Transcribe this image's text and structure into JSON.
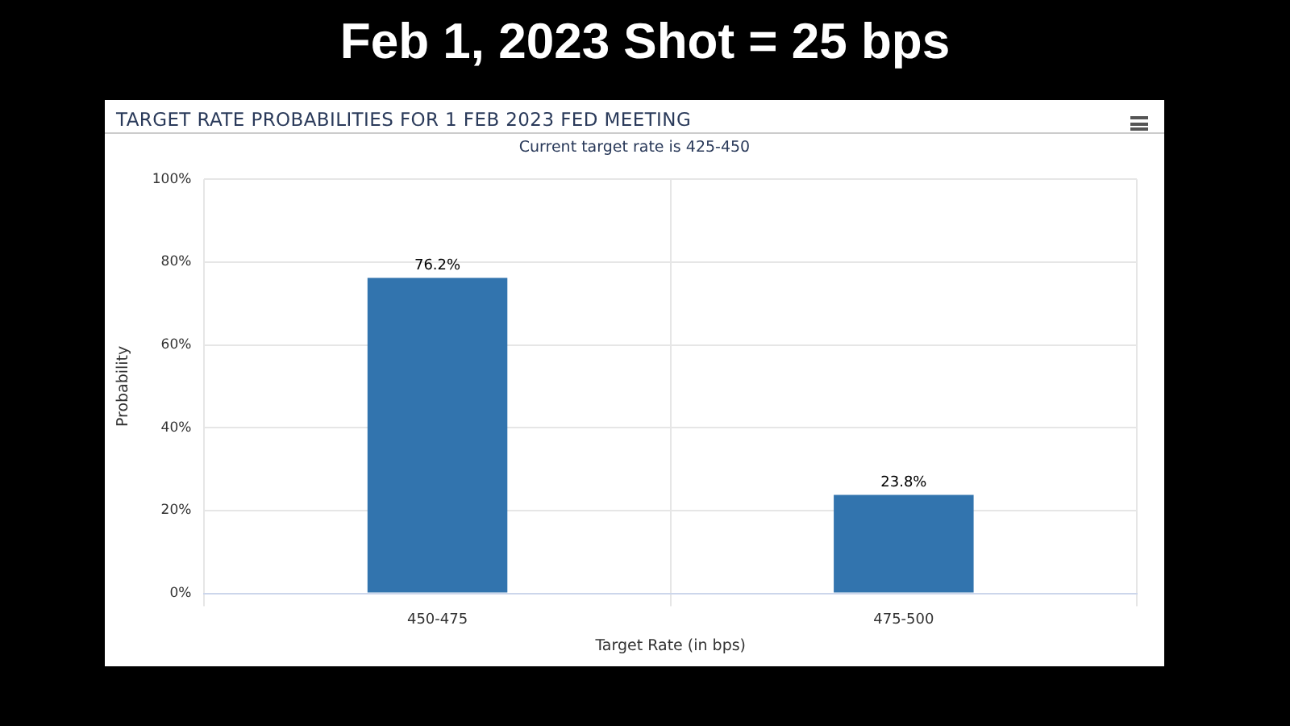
{
  "chart_data": {
    "type": "bar",
    "title": "Feb 1, 2023 Shot = 25 bps",
    "subtitle": "TARGET RATE PROBABILITIES FOR 1 FEB 2023 FED MEETING",
    "annotations": [
      "Current target rate is 425-450"
    ],
    "xlabel": "Target Rate (in bps)",
    "ylabel": "Probability",
    "categories": [
      "450-475",
      "475-500"
    ],
    "values": [
      76.2,
      23.8
    ],
    "color": "#3274ae",
    "value_labels": [
      "76.2%",
      "23.8%"
    ],
    "ylim": [
      0,
      100
    ],
    "yticks": [
      {
        "value": 0,
        "label": "0%"
      },
      {
        "value": 20,
        "label": "20%"
      },
      {
        "value": 40,
        "label": "40%"
      },
      {
        "value": 60,
        "label": "60%"
      },
      {
        "value": 80,
        "label": "80%"
      },
      {
        "value": 100,
        "label": "100%"
      }
    ],
    "grid": true,
    "legend": false
  }
}
